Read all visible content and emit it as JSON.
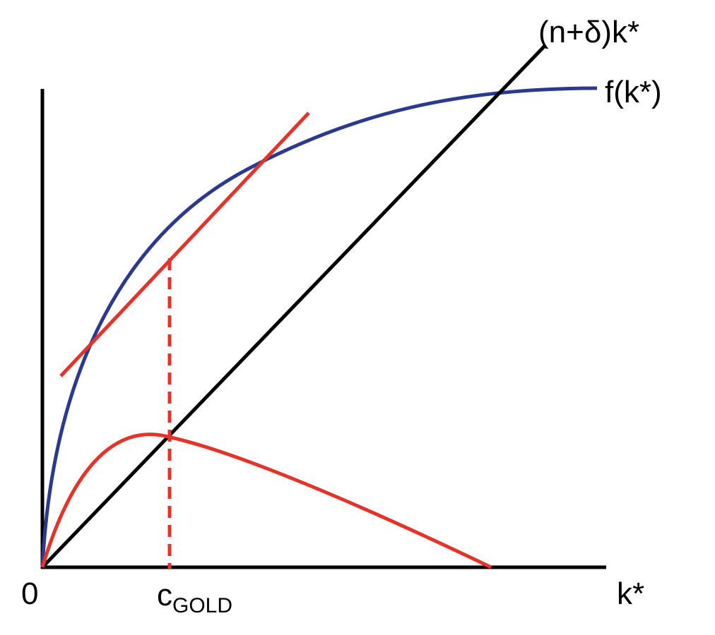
{
  "labels": {
    "line": "(n+δ)k*",
    "curve": "f(k*)",
    "origin": "0",
    "x_axis": "k*",
    "gold_main": "c",
    "gold_sub": "GOLD"
  },
  "colors": {
    "axis": "#000000",
    "production": "#2b3a8f",
    "golden_rule": "#e5332a"
  }
}
